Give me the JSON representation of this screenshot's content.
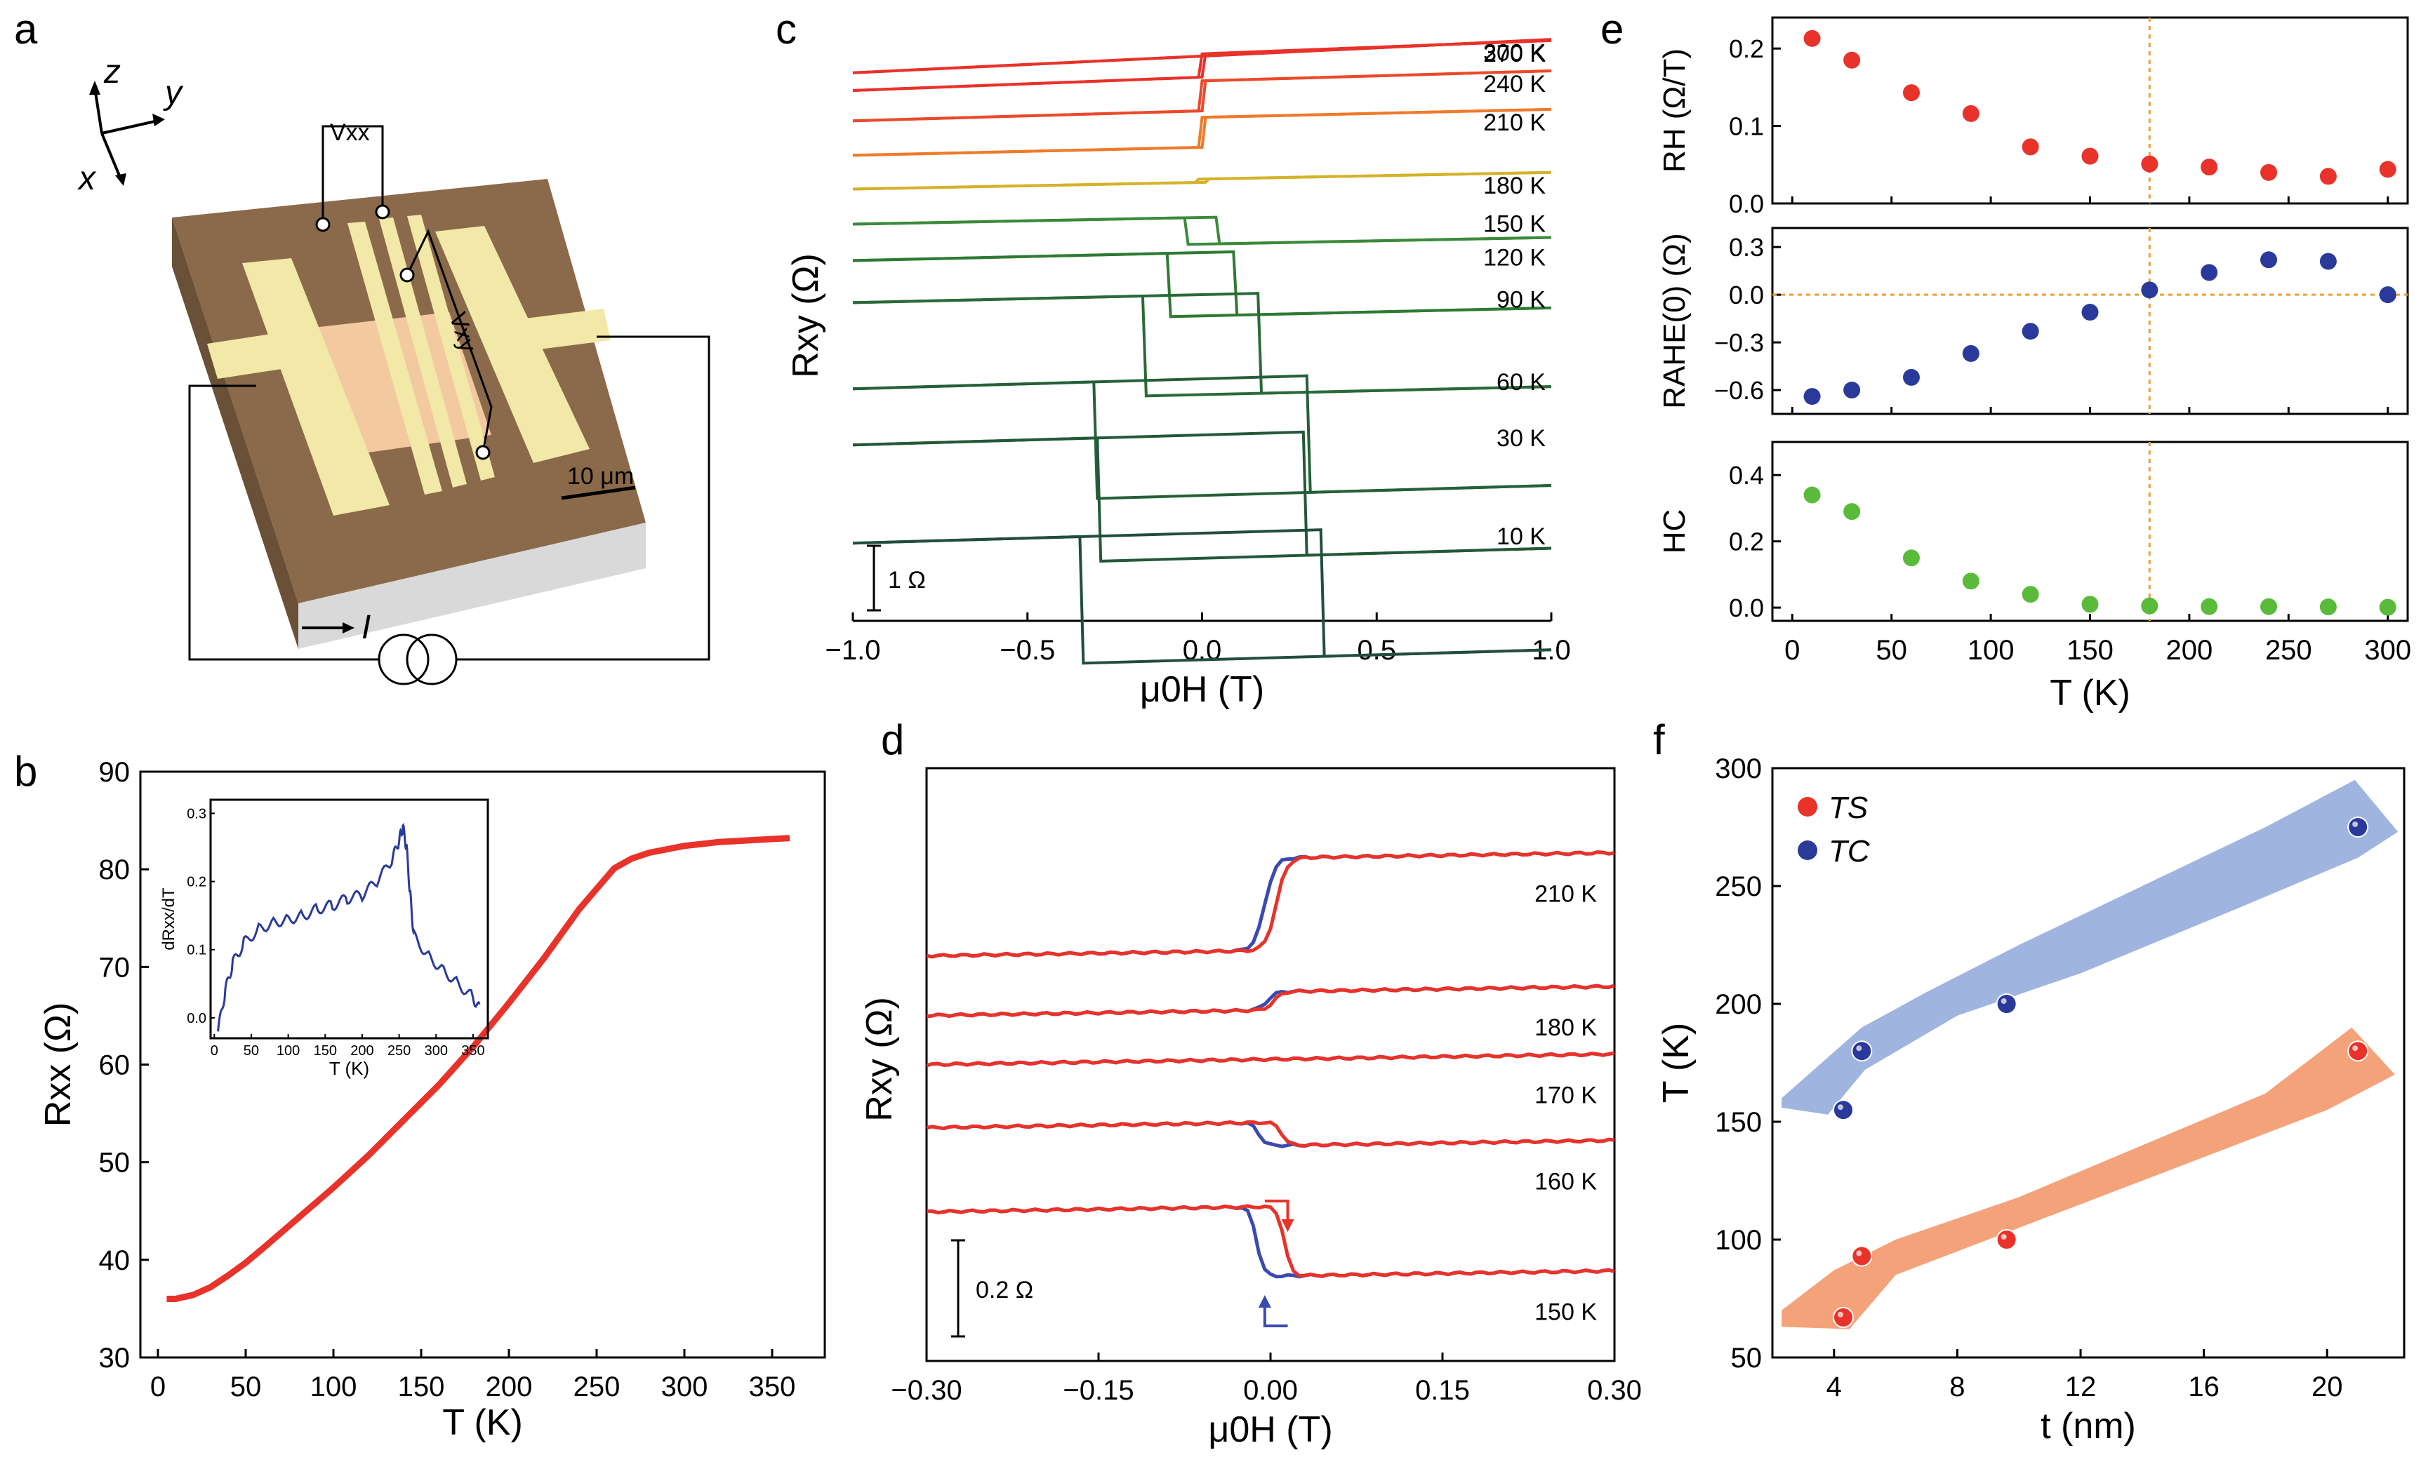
{
  "panel_labels": {
    "a": "a",
    "b": "b",
    "c": "c",
    "d": "d",
    "e": "e",
    "f": "f"
  },
  "panel_a": {
    "axis_z": "z",
    "axis_y": "y",
    "axis_x": "x",
    "vxx_label": "Vxx",
    "vxy_label": "Vxy",
    "scale_bar": "10 μm",
    "current_label": "I",
    "colors": {
      "substrate": "#8a6a4a",
      "electrode": "#f2e8a8",
      "channel": "#f3c9a0",
      "side": "#d9d9d9"
    }
  },
  "chart_data": [
    {
      "id": "b",
      "type": "line",
      "xlabel": "T (K)",
      "ylabel": "Rxx (Ω)",
      "xlim": [
        -10,
        380
      ],
      "ylim": [
        30,
        90
      ],
      "xticks": [
        "0",
        "50",
        "100",
        "150",
        "200",
        "250",
        "300",
        "350"
      ],
      "yticks": [
        "30",
        "40",
        "50",
        "60",
        "70",
        "80",
        "90"
      ],
      "series": [
        {
          "name": "Rxx",
          "color": "#e8322a",
          "x": [
            5,
            10,
            20,
            30,
            40,
            50,
            60,
            80,
            100,
            120,
            140,
            160,
            180,
            200,
            220,
            240,
            260,
            270,
            280,
            300,
            320,
            340,
            360
          ],
          "y": [
            36.0,
            36.0,
            36.4,
            37.2,
            38.4,
            39.7,
            41.2,
            44.3,
            47.4,
            50.7,
            54.3,
            57.9,
            61.9,
            66.3,
            70.9,
            75.9,
            80.1,
            81.1,
            81.7,
            82.4,
            82.8,
            83.0,
            83.2
          ]
        }
      ],
      "inset": {
        "xlabel": "T (K)",
        "ylabel": "dRxx/dT",
        "xlim": [
          -5,
          370
        ],
        "ylim": [
          -0.03,
          0.32
        ],
        "xticks": [
          "0",
          "50",
          "100",
          "150",
          "200",
          "250",
          "300",
          "350"
        ],
        "yticks": [
          "0.0",
          "0.1",
          "0.2",
          "0.3"
        ],
        "series": [
          {
            "name": "dRxx/dT",
            "color": "#2a3a9a",
            "x": [
              5,
              15,
              25,
              40,
              60,
              80,
              100,
              120,
              140,
              160,
              180,
              200,
              220,
              240,
              250,
              255,
              260,
              265,
              270,
              290,
              310,
              330,
              350,
              360
            ],
            "y": [
              -0.02,
              0.04,
              0.08,
              0.11,
              0.13,
              0.14,
              0.145,
              0.15,
              0.16,
              0.165,
              0.175,
              0.18,
              0.2,
              0.23,
              0.26,
              0.28,
              0.25,
              0.18,
              0.12,
              0.09,
              0.07,
              0.05,
              0.03,
              0.01
            ]
          }
        ]
      }
    },
    {
      "id": "c",
      "type": "line",
      "xlabel": "μ0H (T)",
      "ylabel": "Rxy (Ω)",
      "xlim": [
        -1.0,
        1.0
      ],
      "xticks": [
        "-1.0",
        "-0.5",
        "0.0",
        "0.5",
        "1.0"
      ],
      "scale_bar": "1 Ω",
      "series": [
        {
          "name": "300 K",
          "color": "#e8322a",
          "hc": 0.0,
          "step": 0.0,
          "slope": 0.25
        },
        {
          "name": "270 K",
          "color": "#e8322a",
          "hc": 0.0,
          "step": 0.35,
          "slope": 0.2
        },
        {
          "name": "240 K",
          "color": "#ea4a2a",
          "hc": 0.0,
          "step": 0.45,
          "slope": 0.15
        },
        {
          "name": "210 K",
          "color": "#ee7a2a",
          "hc": 0.0,
          "step": 0.45,
          "slope": 0.12
        },
        {
          "name": "180 K",
          "color": "#d4b22a",
          "hc": 0.01,
          "step": 0.05,
          "slope": 0.1
        },
        {
          "name": "150 K",
          "color": "#3a8a3a",
          "hc": 0.04,
          "step": -0.4,
          "slope": 0.1
        },
        {
          "name": "120 K",
          "color": "#2e7a34",
          "hc": 0.09,
          "step": -0.95,
          "slope": 0.12
        },
        {
          "name": "90 K",
          "color": "#2a6a38",
          "hc": 0.16,
          "step": -1.5,
          "slope": 0.12
        },
        {
          "name": "60 K",
          "color": "#266038",
          "hc": 0.3,
          "step": -1.75,
          "slope": 0.15
        },
        {
          "name": "30 K",
          "color": "#245838",
          "hc": 0.29,
          "step": -1.85,
          "slope": 0.15
        },
        {
          "name": "10 K",
          "color": "#224e3c",
          "hc": 0.34,
          "step": -1.9,
          "slope": 0.15
        }
      ]
    },
    {
      "id": "d",
      "type": "line",
      "xlabel": "μ0H (T)",
      "ylabel": "Rxy (Ω)",
      "xlim": [
        -0.3,
        0.3
      ],
      "xticks": [
        "-0.30",
        "-0.15",
        "0.00",
        "0.15",
        "0.30"
      ],
      "scale_bar": "0.2 Ω",
      "series": [
        {
          "name": "210 K",
          "color_up": "#e8322a",
          "color_down": "#3a4ab0",
          "step": 0.4,
          "hc": 0.005,
          "width": 0.018
        },
        {
          "name": "180 K",
          "color_up": "#e8322a",
          "color_down": "#3a4ab0",
          "step": 0.08,
          "hc": 0.003,
          "width": 0.015
        },
        {
          "name": "170 K",
          "color_up": "#e8322a",
          "color_down": "#3a4ab0",
          "step": 0.0,
          "hc": 0.006,
          "width": 0.012
        },
        {
          "name": "160 K",
          "color_up": "#e8322a",
          "color_down": "#3a4ab0",
          "step": -0.1,
          "hc": 0.01,
          "width": 0.012
        },
        {
          "name": "150 K",
          "color_up": "#e8322a",
          "color_down": "#3a4ab0",
          "step": -0.3,
          "hc": 0.012,
          "width": 0.012
        }
      ]
    },
    {
      "id": "e",
      "type": "scatter",
      "xlabel": "T (K)",
      "xlim": [
        -10,
        310
      ],
      "xticks": [
        "0",
        "50",
        "100",
        "150",
        "200",
        "250",
        "300"
      ],
      "vline": 180,
      "subplots": [
        {
          "ylabel": "RH (Ω/T)",
          "ylim": [
            0,
            0.24
          ],
          "yticks": [
            "0.0",
            "0.1",
            "0.2"
          ],
          "color": "#e8322a",
          "x": [
            10,
            30,
            60,
            90,
            120,
            150,
            180,
            210,
            240,
            270,
            300
          ],
          "y": [
            0.213,
            0.185,
            0.143,
            0.116,
            0.073,
            0.061,
            0.051,
            0.047,
            0.04,
            0.035,
            0.044
          ]
        },
        {
          "ylabel": "RAHE(0) (Ω)",
          "ylim": [
            -0.75,
            0.42
          ],
          "yticks": [
            "0.3",
            "0.0",
            "-0.3",
            "-0.6"
          ],
          "color": "#2a3a9a",
          "hline": 0,
          "x": [
            10,
            30,
            60,
            90,
            120,
            150,
            180,
            210,
            240,
            270,
            300
          ],
          "y": [
            -0.64,
            -0.6,
            -0.52,
            -0.37,
            -0.23,
            -0.11,
            0.03,
            0.14,
            0.22,
            0.21,
            0.0
          ]
        },
        {
          "ylabel": "HC",
          "ylim": [
            -0.04,
            0.5
          ],
          "yticks": [
            "0.0",
            "0.2",
            "0.4"
          ],
          "color": "#5aba3a",
          "x": [
            10,
            30,
            60,
            90,
            120,
            150,
            180,
            210,
            240,
            270,
            300
          ],
          "y": [
            0.34,
            0.29,
            0.15,
            0.08,
            0.04,
            0.01,
            0.005,
            0.003,
            0.003,
            0.002,
            0.001
          ]
        }
      ]
    },
    {
      "id": "f",
      "type": "scatter",
      "xlabel": "t (nm)",
      "ylabel": "T (K)",
      "xlim": [
        2,
        22.5
      ],
      "ylim": [
        50,
        300
      ],
      "xticks": [
        "4",
        "8",
        "12",
        "16",
        "20"
      ],
      "yticks": [
        "50",
        "100",
        "150",
        "200",
        "250",
        "300"
      ],
      "series": [
        {
          "name": "TS",
          "color": "#e8322a",
          "band": "#f4a27a",
          "x": [
            4.3,
            4.9,
            9.6,
            21.0
          ],
          "y": [
            67,
            93,
            100,
            180
          ]
        },
        {
          "name": "TC",
          "color": "#2a3a9a",
          "band": "#9fb4de",
          "x": [
            4.3,
            4.9,
            9.6,
            21.0
          ],
          "y": [
            155,
            180,
            200,
            275
          ]
        }
      ],
      "legend": [
        "TS",
        "TC"
      ]
    }
  ]
}
